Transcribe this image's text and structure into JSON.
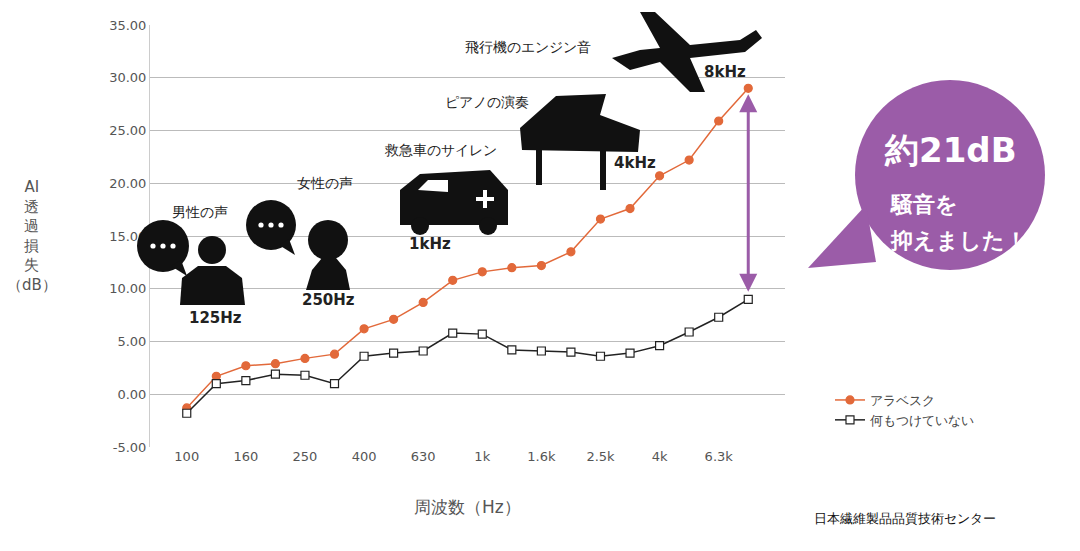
{
  "chart_data": {
    "type": "line",
    "x_label": "周波数（Hz）",
    "y_label": "AI透過損失（dB）",
    "categories": [
      "100",
      null,
      "160",
      null,
      "250",
      null,
      "400",
      null,
      "630",
      null,
      "1k",
      null,
      "1.6k",
      null,
      "2.5k",
      null,
      "4k",
      null,
      "6.3k",
      null
    ],
    "series": [
      {
        "name": "アラベスク",
        "color": "#e2693a",
        "marker": "circle",
        "values": [
          -1.3,
          1.7,
          2.7,
          2.9,
          3.4,
          3.8,
          6.2,
          7.1,
          8.7,
          10.8,
          11.6,
          12.0,
          12.2,
          13.5,
          16.6,
          17.6,
          20.7,
          22.2,
          25.9,
          29.0
        ]
      },
      {
        "name": "何もつけていない",
        "color": "#222222",
        "marker": "hollow-square",
        "values": [
          -1.8,
          1.0,
          1.3,
          1.9,
          1.8,
          1.0,
          3.6,
          3.9,
          4.1,
          5.8,
          5.7,
          4.2,
          4.1,
          4.0,
          3.6,
          3.9,
          4.6,
          5.9,
          7.3,
          9.0
        ]
      }
    ],
    "ylim": [
      -5,
      35
    ],
    "yticks": [
      {
        "value": -5,
        "label": "-5.00"
      },
      {
        "value": 0,
        "label": "0.00"
      },
      {
        "value": 5,
        "label": "5.00"
      },
      {
        "value": 10,
        "label": "10.00"
      },
      {
        "value": 15,
        "label": "15.00"
      },
      {
        "value": 20,
        "label": "20.00"
      },
      {
        "value": 25,
        "label": "25.00"
      },
      {
        "value": 30,
        "label": "30.00"
      },
      {
        "value": 35,
        "label": "35.00"
      }
    ],
    "grid": true,
    "legend": "right",
    "annotations": [
      {
        "text": "男性の声",
        "frequency": "125Hz"
      },
      {
        "text": "女性の声",
        "frequency": "250Hz"
      },
      {
        "text": "救急車のサイレン",
        "frequency": "1kHz"
      },
      {
        "text": "ピアノの演奏",
        "frequency": "4kHz"
      },
      {
        "text": "飛行機のエンジン音",
        "frequency": "8kHz"
      }
    ],
    "callout": {
      "color": "#9b5ca8",
      "lines": [
        "約21dB",
        "騒音を",
        "抑えました！"
      ]
    },
    "source": "日本繊維製品品質技術センター"
  }
}
